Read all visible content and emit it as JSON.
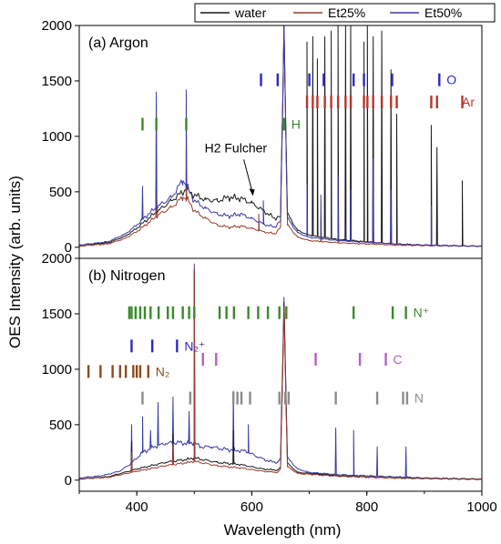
{
  "chart_data": {
    "type": "line",
    "xlabel": "Wavelength (nm)",
    "ylabel": "OES Intensity (arb. units)",
    "xlim": [
      300,
      1000
    ],
    "x_ticks": [
      "400",
      "600",
      "800",
      "1000"
    ],
    "legend": {
      "placement": "top-right",
      "entries": [
        {
          "name": "water",
          "color": "#1a1a1a"
        },
        {
          "name": "Et25%",
          "color": "#9c3b2a"
        },
        {
          "name": "Et50%",
          "color": "#3a3aa8"
        }
      ]
    },
    "panels": [
      {
        "title": "(a) Argon",
        "ylim": [
          -100,
          2000
        ],
        "y_ticks": [
          "0",
          "500",
          "1000",
          "1500",
          "2000"
        ],
        "annotation": {
          "text": "H2 Fulcher",
          "x": 605,
          "y": 430
        },
        "species": [
          {
            "label": "O",
            "color": "#2a2acb",
            "y": 1510,
            "lines": [
              616,
              645,
              700,
              725,
              777,
              795,
              844,
              926
            ]
          },
          {
            "label": "Ar",
            "color": "#b5372b",
            "y": 1310,
            "lines": [
              696,
              706,
              714,
              727,
              738,
              750,
              763,
              772,
              795,
              801,
              811,
              826,
              842,
              852,
              912,
              922,
              966
            ]
          },
          {
            "label": "H",
            "color": "#3a8a2a",
            "y": 1110,
            "lines": [
              410,
              434,
              486,
              656
            ]
          }
        ],
        "series": [
          {
            "name": "water",
            "color": "#1a1a1a",
            "points": [
              [
                300,
                20
              ],
              [
                350,
                40
              ],
              [
                380,
                100
              ],
              [
                400,
                170
              ],
              [
                420,
                260
              ],
              [
                440,
                340
              ],
              [
                460,
                420
              ],
              [
                475,
                480
              ],
              [
                485,
                520
              ],
              [
                500,
                470
              ],
              [
                520,
                430
              ],
              [
                540,
                420
              ],
              [
                560,
                450
              ],
              [
                580,
                440
              ],
              [
                600,
                400
              ],
              [
                620,
                330
              ],
              [
                640,
                260
              ],
              [
                650,
                280
              ],
              [
                656,
                2000
              ],
              [
                662,
                300
              ],
              [
                680,
                150
              ],
              [
                700,
                110
              ],
              [
                750,
                70
              ],
              [
                800,
                50
              ],
              [
                850,
                30
              ],
              [
                900,
                20
              ],
              [
                1000,
                10
              ]
            ],
            "spikes": [
              [
                696,
                1850
              ],
              [
                706,
                1900
              ],
              [
                714,
                1700
              ],
              [
                727,
                1900
              ],
              [
                738,
                1950
              ],
              [
                750,
                2000
              ],
              [
                763,
                2000
              ],
              [
                772,
                2000
              ],
              [
                795,
                1850
              ],
              [
                801,
                2000
              ],
              [
                811,
                1900
              ],
              [
                826,
                1950
              ],
              [
                842,
                1600
              ],
              [
                852,
                1200
              ],
              [
                912,
                1100
              ],
              [
                922,
                900
              ],
              [
                966,
                600
              ],
              [
                434,
                600
              ],
              [
                486,
                700
              ]
            ]
          },
          {
            "name": "Et25%",
            "color": "#9c3b2a",
            "points": [
              [
                300,
                10
              ],
              [
                350,
                30
              ],
              [
                380,
                80
              ],
              [
                400,
                140
              ],
              [
                420,
                220
              ],
              [
                440,
                300
              ],
              [
                460,
                360
              ],
              [
                480,
                450
              ],
              [
                490,
                420
              ],
              [
                500,
                330
              ],
              [
                520,
                260
              ],
              [
                540,
                200
              ],
              [
                560,
                180
              ],
              [
                580,
                190
              ],
              [
                600,
                170
              ],
              [
                620,
                140
              ],
              [
                640,
                120
              ],
              [
                650,
                180
              ],
              [
                656,
                2000
              ],
              [
                662,
                200
              ],
              [
                680,
                90
              ],
              [
                700,
                60
              ],
              [
                750,
                40
              ],
              [
                800,
                30
              ],
              [
                850,
                20
              ],
              [
                900,
                15
              ],
              [
                1000,
                8
              ]
            ],
            "spikes": [
              [
                434,
                760
              ],
              [
                486,
                900
              ],
              [
                612,
                300
              ],
              [
                720,
                260
              ],
              [
                750,
                290
              ],
              [
                811,
                340
              ],
              [
                842,
                260
              ]
            ]
          },
          {
            "name": "Et50%",
            "color": "#3a3aa8",
            "points": [
              [
                300,
                20
              ],
              [
                350,
                50
              ],
              [
                380,
                120
              ],
              [
                400,
                200
              ],
              [
                420,
                300
              ],
              [
                440,
                380
              ],
              [
                460,
                450
              ],
              [
                480,
                600
              ],
              [
                490,
                520
              ],
              [
                500,
                420
              ],
              [
                520,
                350
              ],
              [
                540,
                300
              ],
              [
                560,
                280
              ],
              [
                580,
                300
              ],
              [
                600,
                260
              ],
              [
                620,
                210
              ],
              [
                640,
                180
              ],
              [
                650,
                240
              ],
              [
                656,
                2000
              ],
              [
                662,
                260
              ],
              [
                680,
                130
              ],
              [
                700,
                90
              ],
              [
                750,
                60
              ],
              [
                800,
                45
              ],
              [
                850,
                30
              ],
              [
                900,
                20
              ],
              [
                1000,
                10
              ]
            ],
            "spikes": [
              [
                410,
                550
              ],
              [
                434,
                1400
              ],
              [
                486,
                1420
              ],
              [
                620,
                420
              ],
              [
                696,
                560
              ],
              [
                720,
                470
              ],
              [
                750,
                650
              ],
              [
                772,
                520
              ],
              [
                811,
                800
              ],
              [
                842,
                520
              ],
              [
                912,
                370
              ]
            ]
          }
        ]
      },
      {
        "title": "(b) Nitrogen",
        "ylim": [
          -100,
          2000
        ],
        "y_ticks": [
          "0",
          "500",
          "1000",
          "1500",
          "2000"
        ],
        "species": [
          {
            "label": "N⁺",
            "color": "#3a8a2a",
            "y": 1510,
            "lines": [
              387,
              391,
              398,
              406,
              414,
              424,
              438,
              454,
              463,
              480,
              491,
              500,
              544,
              556,
              569,
              594,
              611,
              628,
              648,
              660,
              777,
              845,
              868
            ]
          },
          {
            "label": "N₂⁺",
            "color": "#2a2acb",
            "y": 1210,
            "lines": [
              391,
              427,
              470
            ]
          },
          {
            "label": "C",
            "color": "#b75ec9",
            "y": 1090,
            "lines": [
              515,
              538,
              711,
              788,
              833
            ]
          },
          {
            "label": "N₂",
            "color": "#8c4a1e",
            "y": 980,
            "lines": [
              296,
              316,
              337,
              358,
              371,
              381,
              394,
              400,
              406,
              420
            ]
          },
          {
            "label": "N",
            "color": "#8c8c8c",
            "y": 740,
            "lines": [
              410,
              493,
              568,
              575,
              582,
              597,
              648,
              658,
              664,
              746,
              818,
              863,
              870
            ]
          }
        ],
        "series": [
          {
            "name": "Et50%",
            "color": "#3a3aa8",
            "points": [
              [
                300,
                20
              ],
              [
                340,
                40
              ],
              [
                370,
                80
              ],
              [
                390,
                150
              ],
              [
                410,
                250
              ],
              [
                430,
                300
              ],
              [
                450,
                330
              ],
              [
                470,
                340
              ],
              [
                490,
                330
              ],
              [
                500,
                340
              ],
              [
                510,
                300
              ],
              [
                530,
                300
              ],
              [
                550,
                280
              ],
              [
                570,
                270
              ],
              [
                590,
                260
              ],
              [
                610,
                210
              ],
              [
                630,
                170
              ],
              [
                645,
                160
              ],
              [
                650,
                200
              ],
              [
                656,
                1650
              ],
              [
                662,
                200
              ],
              [
                680,
                100
              ],
              [
                700,
                70
              ],
              [
                750,
                50
              ],
              [
                800,
                40
              ],
              [
                850,
                30
              ],
              [
                900,
                20
              ],
              [
                1000,
                10
              ]
            ],
            "spikes": [
              [
                391,
                500
              ],
              [
                410,
                570
              ],
              [
                424,
                450
              ],
              [
                437,
                700
              ],
              [
                463,
                750
              ],
              [
                491,
                620
              ],
              [
                500,
                1950
              ],
              [
                568,
                800
              ],
              [
                594,
                500
              ],
              [
                746,
                470
              ],
              [
                777,
                450
              ],
              [
                818,
                300
              ],
              [
                868,
                300
              ]
            ]
          },
          {
            "name": "water",
            "color": "#1a1a1a",
            "points": [
              [
                300,
                10
              ],
              [
                350,
                30
              ],
              [
                400,
                100
              ],
              [
                450,
                160
              ],
              [
                490,
                190
              ],
              [
                500,
                200
              ],
              [
                540,
                160
              ],
              [
                580,
                140
              ],
              [
                620,
                100
              ],
              [
                645,
                90
              ],
              [
                650,
                120
              ],
              [
                656,
                1600
              ],
              [
                662,
                150
              ],
              [
                680,
                70
              ],
              [
                750,
                40
              ],
              [
                850,
                20
              ],
              [
                1000,
                8
              ]
            ],
            "spikes": [
              [
                391,
                350
              ],
              [
                463,
                420
              ],
              [
                500,
                1900
              ],
              [
                568,
                450
              ]
            ]
          },
          {
            "name": "Et25%",
            "color": "#9c3b2a",
            "points": [
              [
                300,
                10
              ],
              [
                350,
                25
              ],
              [
                400,
                80
              ],
              [
                450,
                130
              ],
              [
                490,
                160
              ],
              [
                500,
                170
              ],
              [
                540,
                130
              ],
              [
                580,
                110
              ],
              [
                620,
                80
              ],
              [
                645,
                70
              ],
              [
                650,
                100
              ],
              [
                656,
                1560
              ],
              [
                662,
                120
              ],
              [
                680,
                60
              ],
              [
                750,
                35
              ],
              [
                850,
                18
              ],
              [
                1000,
                6
              ]
            ],
            "spikes": [
              [
                391,
                250
              ],
              [
                463,
                300
              ],
              [
                500,
                1900
              ]
            ]
          }
        ]
      }
    ]
  }
}
